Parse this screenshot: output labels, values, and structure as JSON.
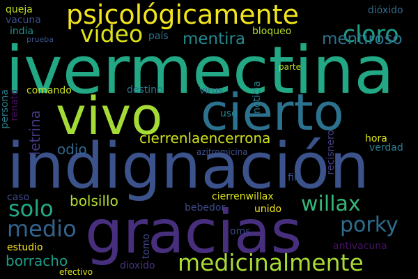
{
  "wordcloud": {
    "background": "#000000",
    "words": [
      {
        "text": "ivermectina",
        "color": "#22a884"
      },
      {
        "text": "indignación",
        "color": "#3b528b"
      },
      {
        "text": "gracias",
        "color": "#472f7d"
      },
      {
        "text": "cierto",
        "color": "#2c728e"
      },
      {
        "text": "vivo",
        "color": "#a5db36"
      },
      {
        "text": "psicológicamente",
        "color": "#f1e51d"
      },
      {
        "text": "medicinalmente",
        "color": "#a8db34"
      },
      {
        "text": "vídeo",
        "color": "#dde318"
      },
      {
        "text": "cloro",
        "color": "#1f9e89"
      },
      {
        "text": "porky",
        "color": "#2f6c8e"
      },
      {
        "text": "willax",
        "color": "#35b779"
      },
      {
        "text": "solo",
        "color": "#22a884"
      },
      {
        "text": "medio",
        "color": "#33638d"
      },
      {
        "text": "mentiroso",
        "color": "#2c728e"
      },
      {
        "text": "mentira",
        "color": "#23898e"
      },
      {
        "text": "cierrenlaencerrona",
        "color": "#d0e11c"
      },
      {
        "text": "bolsillo",
        "color": "#b5de2b"
      },
      {
        "text": "borracho",
        "color": "#1f9e89"
      },
      {
        "text": "letrina",
        "color": "#443a83"
      },
      {
        "text": "odio",
        "color": "#31688e"
      },
      {
        "text": "comando",
        "color": "#cae11f"
      },
      {
        "text": "destino",
        "color": "#2a778e"
      },
      {
        "text": "noticia",
        "color": "#277f8e"
      },
      {
        "text": "uso",
        "color": "#24878e"
      },
      {
        "text": "hora",
        "color": "#dde318"
      },
      {
        "text": "verdad",
        "color": "#287d8e"
      },
      {
        "text": "cierrenwillax",
        "color": "#dde318"
      },
      {
        "text": "bebedor",
        "color": "#3e4989"
      },
      {
        "text": "unido",
        "color": "#f1e51d"
      },
      {
        "text": "oms",
        "color": "#3e4989"
      },
      {
        "text": "tomo",
        "color": "#3f4788"
      },
      {
        "text": "antivacuna",
        "color": "#471365"
      },
      {
        "text": "dioxido",
        "color": "#46337e"
      },
      {
        "text": "efectivo",
        "color": "#d8e219"
      },
      {
        "text": "estudio",
        "color": "#fde725"
      },
      {
        "text": "caso",
        "color": "#3e4a89"
      },
      {
        "text": "persona",
        "color": "#287d8e"
      },
      {
        "text": "renato",
        "color": "#471164"
      },
      {
        "text": "queja",
        "color": "#c2df23"
      },
      {
        "text": "vacuna",
        "color": "#3d4e8a"
      },
      {
        "text": "india",
        "color": "#21918c"
      },
      {
        "text": "prueba",
        "color": "#3b528b"
      },
      {
        "text": "país",
        "color": "#2c728e"
      },
      {
        "text": "bloqueo",
        "color": "#b5de2b"
      },
      {
        "text": "dióxido",
        "color": "#2f6c8e"
      },
      {
        "text": "parte",
        "color": "#c2df23"
      },
      {
        "text": "virus",
        "color": "#31688e"
      },
      {
        "text": "recisnero",
        "color": "#433e85"
      },
      {
        "text": "azitromicina",
        "color": "#3d4e8a"
      },
      {
        "text": "fin",
        "color": "#3b528b"
      }
    ]
  }
}
